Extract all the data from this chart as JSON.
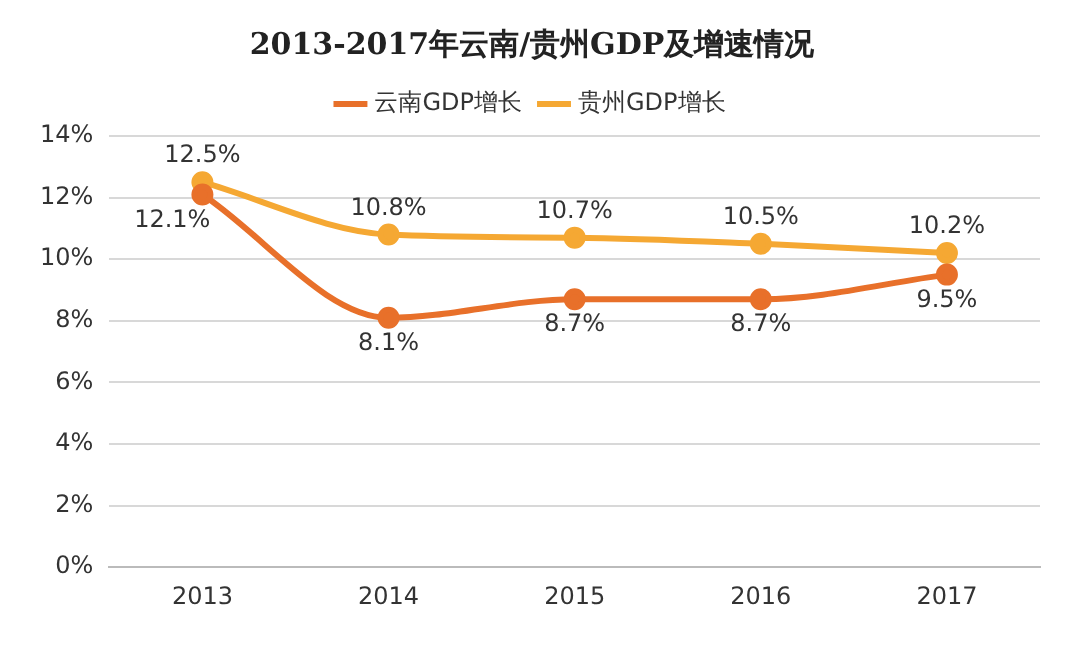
{
  "chart_data": {
    "type": "line",
    "title": "2013-2017年云南/贵州GDP及增速情况",
    "categories": [
      "2013",
      "2014",
      "2015",
      "2016",
      "2017"
    ],
    "series": [
      {
        "name": "云南GDP增长",
        "color": "#e8702a",
        "values": [
          12.1,
          8.1,
          8.7,
          8.7,
          9.5
        ],
        "value_labels": [
          "12.1%",
          "8.1%",
          "8.7%",
          "8.7%",
          "9.5%"
        ]
      },
      {
        "name": "贵州GDP增长",
        "color": "#f5a833",
        "values": [
          12.5,
          10.8,
          10.7,
          10.5,
          10.2
        ],
        "value_labels": [
          "12.5%",
          "10.8%",
          "10.7%",
          "10.5%",
          "10.2%"
        ]
      }
    ],
    "ylim": [
      0,
      14
    ],
    "yticks": [
      {
        "value": 0,
        "label": "0%"
      },
      {
        "value": 2,
        "label": "2%"
      },
      {
        "value": 4,
        "label": "4%"
      },
      {
        "value": 6,
        "label": "6%"
      },
      {
        "value": 8,
        "label": "8%"
      },
      {
        "value": 10,
        "label": "10%"
      },
      {
        "value": 12,
        "label": "12%"
      },
      {
        "value": 14,
        "label": "14%"
      }
    ],
    "grid": "y",
    "legend": "top",
    "marker": "circle",
    "line_style": "solid"
  }
}
